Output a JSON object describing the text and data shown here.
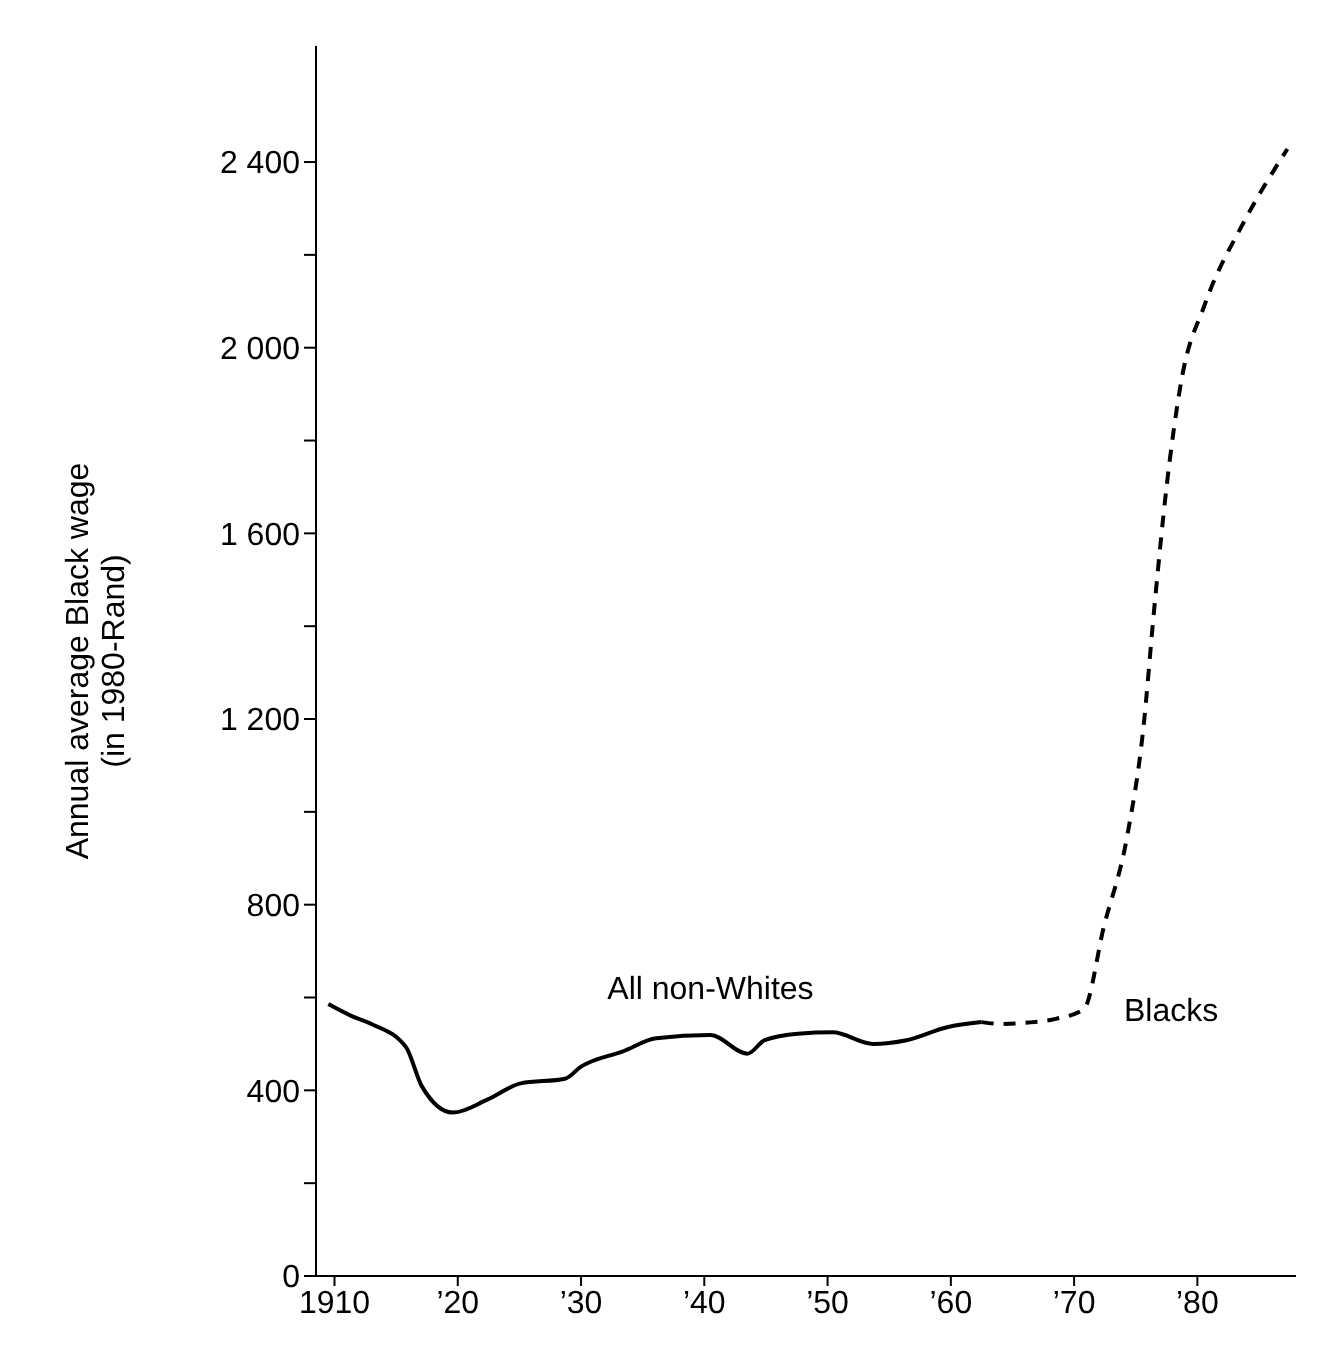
{
  "chart_data": {
    "type": "line",
    "ylabel": "Annual average Black wage\n(in 1980-Rand)",
    "xlim": [
      1908.5,
      1988
    ],
    "xticks": [
      {
        "value": 1910,
        "label": "1910"
      },
      {
        "value": 1920,
        "label": "’20"
      },
      {
        "value": 1930,
        "label": "’30"
      },
      {
        "value": 1940,
        "label": "’40"
      },
      {
        "value": 1950,
        "label": "’50"
      },
      {
        "value": 1960,
        "label": "’60"
      },
      {
        "value": 1970,
        "label": "’70"
      },
      {
        "value": 1980,
        "label": "’80"
      }
    ],
    "ylim": [
      0,
      2650
    ],
    "yticks": [
      {
        "value": 0,
        "label": "0"
      },
      {
        "value": 200,
        "label": null
      },
      {
        "value": 400,
        "label": "400"
      },
      {
        "value": 600,
        "label": null
      },
      {
        "value": 800,
        "label": "800"
      },
      {
        "value": 1000,
        "label": null
      },
      {
        "value": 1200,
        "label": "1 200"
      },
      {
        "value": 1400,
        "label": null
      },
      {
        "value": 1600,
        "label": "1 600"
      },
      {
        "value": 1800,
        "label": null
      },
      {
        "value": 2000,
        "label": "2 000"
      },
      {
        "value": 2200,
        "label": null
      },
      {
        "value": 2400,
        "label": "2 400"
      }
    ],
    "grid": false,
    "legend": false,
    "marker": "none",
    "series": [
      {
        "name": "All non-Whites",
        "color": "#000000",
        "line_style": "solid",
        "x": [
          1909.5,
          1911.4,
          1913,
          1915.8,
          1917.1,
          1919.6,
          1922.4,
          1925.1,
          1928.7,
          1930,
          1933.4,
          1936.1,
          1940.5,
          1943.5,
          1944.9,
          1947.6,
          1950.4,
          1953.7,
          1956.4,
          1959.7,
          1962.5
        ],
        "values": [
          586,
          560,
          543,
          493,
          408,
          352,
          380,
          415,
          425,
          451,
          484,
          512,
          519,
          479,
          508,
          522,
          525,
          500,
          508,
          536,
          547
        ]
      },
      {
        "name": "Blacks",
        "color": "#000000",
        "line_style": "dashed",
        "x": [
          1962.5,
          1964.1,
          1966.3,
          1968.5,
          1970.8,
          1972.4,
          1974.3,
          1975.6,
          1976.5,
          1977.5,
          1978.7,
          1980.6,
          1983.8,
          1987.3
        ],
        "values": [
          547,
          543,
          546,
          554,
          575,
          751,
          947,
          1176,
          1438,
          1700,
          1929,
          2093,
          2272,
          2428
        ]
      }
    ]
  }
}
